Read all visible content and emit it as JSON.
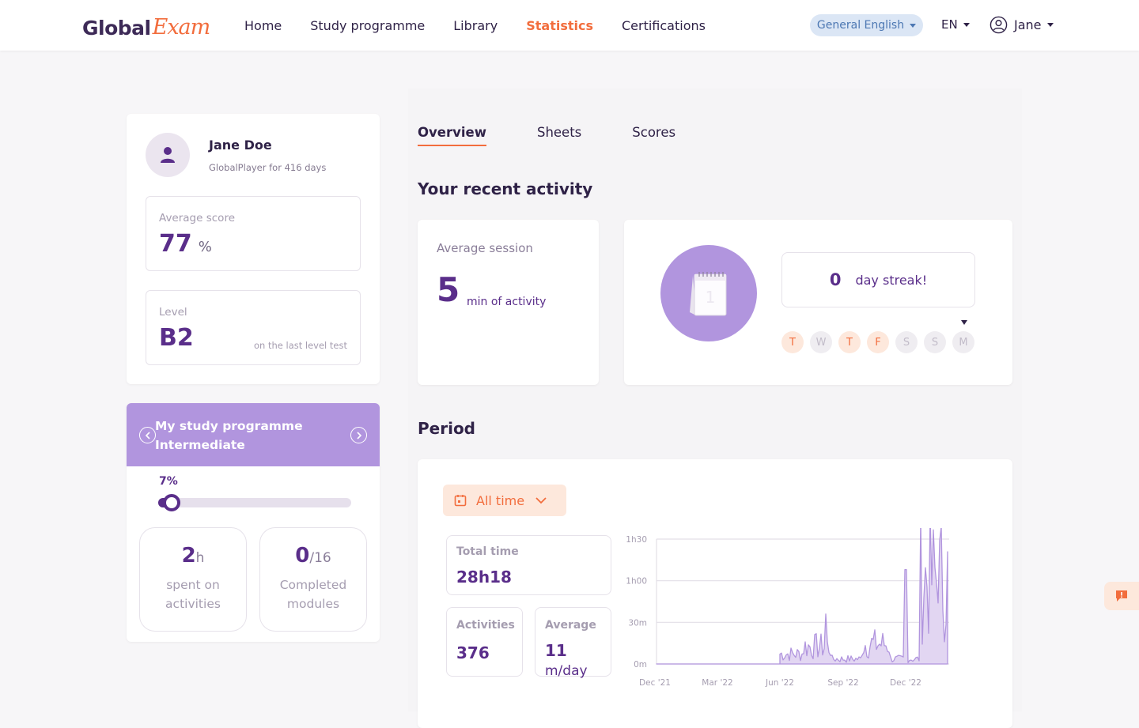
{
  "header": {
    "logo_main": "Global",
    "logo_accent": "Exam",
    "nav": [
      {
        "label": "Home",
        "active": false
      },
      {
        "label": "Study programme",
        "active": false
      },
      {
        "label": "Library",
        "active": false
      },
      {
        "label": "Statistics",
        "active": true
      },
      {
        "label": "Certifications",
        "active": false
      }
    ],
    "course_selector": "General English",
    "language": "EN",
    "user": "Jane"
  },
  "profile": {
    "name": "Jane Doe",
    "subtitle": "GlobalPlayer for 416 days",
    "average_score": {
      "label": "Average score",
      "value": "77",
      "unit": "%"
    },
    "level": {
      "label": "Level",
      "value": "B2",
      "note": "on the last level test"
    }
  },
  "programme": {
    "title_line1": "My study programme",
    "title_line2": "Intermediate",
    "progress_label": "7%",
    "progress_value": 0.07,
    "time": {
      "value": "2",
      "unit": "h",
      "line1": "spent on",
      "line2": "activities"
    },
    "modules": {
      "value": "0",
      "total": "/16",
      "line1": "Completed",
      "line2": "modules"
    }
  },
  "tabs": [
    {
      "label": "Overview",
      "active": true
    },
    {
      "label": "Sheets",
      "active": false
    },
    {
      "label": "Scores",
      "active": false
    }
  ],
  "recent_activity": {
    "heading": "Your recent activity",
    "average_session": {
      "label": "Average session",
      "value": "5",
      "unit": "min of activity"
    },
    "calendar_page": "1",
    "streak": {
      "value": "0",
      "label": "day streak!"
    },
    "days": [
      {
        "letter": "T",
        "active": true
      },
      {
        "letter": "W",
        "active": false
      },
      {
        "letter": "T",
        "active": true
      },
      {
        "letter": "F",
        "active": true
      },
      {
        "letter": "S",
        "active": false
      },
      {
        "letter": "S",
        "active": false
      },
      {
        "letter": "M",
        "active": false
      }
    ]
  },
  "period": {
    "heading": "Period",
    "dropdown": "All time",
    "total_time": {
      "label": "Total time",
      "value": "28h18"
    },
    "activities": {
      "label": "Activities",
      "value": "376"
    },
    "average": {
      "label": "Average",
      "value": "11",
      "unit": "m/day"
    }
  },
  "colors": {
    "accent": "#f26d3d",
    "brand_purple": "#5a2e8a",
    "lavender": "#b195de"
  },
  "chart_data": {
    "type": "area",
    "y_ticks": [
      "0m",
      "30m",
      "1h00",
      "1h30"
    ],
    "x_ticks": [
      "Dec '21",
      "Mar '22",
      "Jun '22",
      "Sep '22",
      "Dec '22"
    ],
    "ylim": [
      0,
      90
    ],
    "x": [
      "Dec '21",
      "Mar '22",
      "May '22",
      "Jun '22",
      "Jul '22",
      "Aug '22",
      "Sep '22",
      "Oct '22",
      "Nov '22",
      "Dec '22",
      "Jan '23"
    ],
    "values": [
      0,
      0,
      0,
      0,
      8,
      14,
      4,
      16,
      4,
      68,
      20
    ]
  }
}
